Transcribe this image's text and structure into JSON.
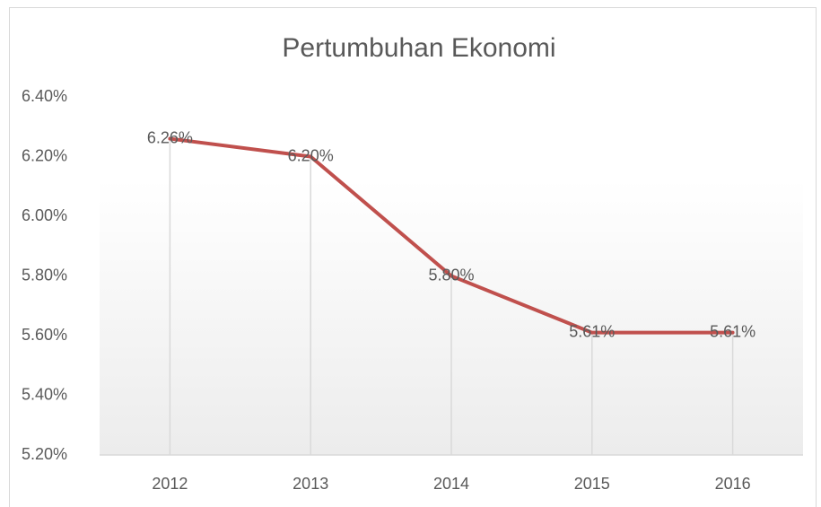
{
  "chart_data": {
    "type": "line",
    "title": "Pertumbuhan Ekonomi",
    "categories": [
      "2012",
      "2013",
      "2014",
      "2015",
      "2016"
    ],
    "series": [
      {
        "name": "Pertumbuhan Ekonomi",
        "color": "#c0504d",
        "values": [
          6.26,
          6.2,
          5.8,
          5.61,
          5.61
        ],
        "value_labels": [
          "6.26%",
          "6.20%",
          "5.80%",
          "5.61%",
          "5.61%"
        ]
      }
    ],
    "ylim": [
      5.2,
      6.4
    ],
    "yticks": [
      {
        "value": 5.2,
        "label": "5.20%"
      },
      {
        "value": 5.4,
        "label": "5.40%"
      },
      {
        "value": 5.6,
        "label": "5.60%"
      },
      {
        "value": 5.8,
        "label": "5.80%"
      },
      {
        "value": 6.0,
        "label": "6.00%"
      },
      {
        "value": 6.2,
        "label": "6.20%"
      },
      {
        "value": 6.4,
        "label": "6.40%"
      }
    ],
    "grid": false,
    "drop_lines": true
  }
}
